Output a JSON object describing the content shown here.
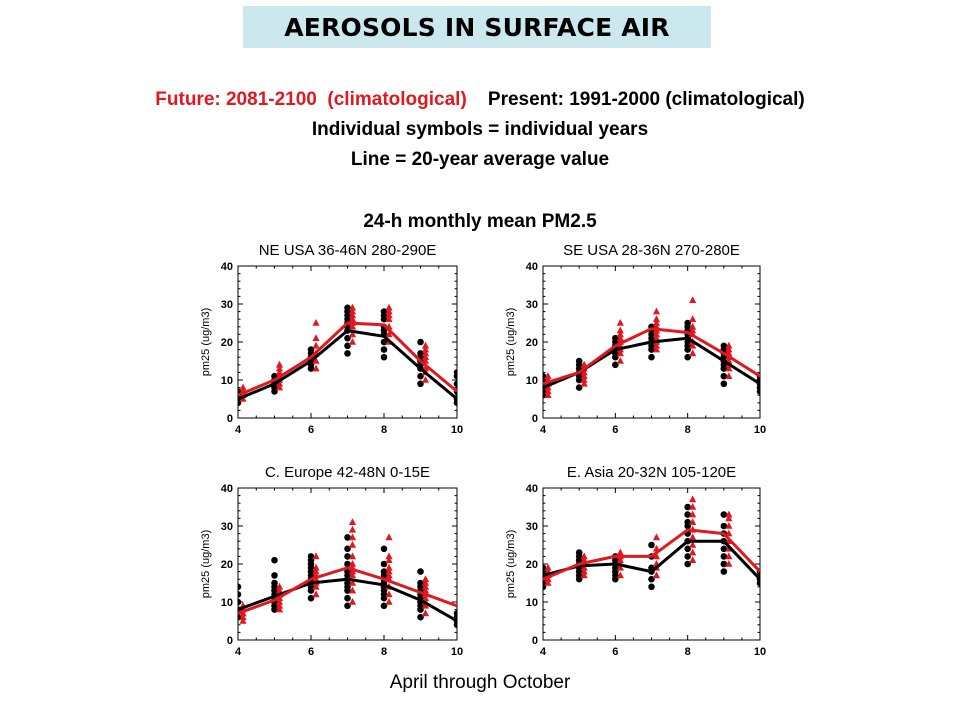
{
  "header": {
    "title": "AEROSOLS IN SURFACE AIR",
    "future_label": "Future: 2081-2100  (climatological)",
    "present_label": "Present: 1991-2000 (climatological)",
    "line2": "Individual symbols = individual years",
    "line3": "Line = 20-year average value",
    "subtitle": "24-h monthly mean PM2.5"
  },
  "footer": {
    "text": "April through October"
  },
  "colors": {
    "future": "#e0181f",
    "present": "#000000",
    "title_bg": "#cbe8ef"
  },
  "chart_data": [
    {
      "type": "scatter",
      "title": "NE USA 36-46N 280-290E",
      "ylabel": "pm25 (ug/m3)",
      "xlabel": "",
      "xlim": [
        4,
        10
      ],
      "ylim": [
        0,
        40
      ],
      "xticks": [
        "4",
        "6",
        "8",
        "10"
      ],
      "yticks": [
        "0",
        "10",
        "20",
        "30",
        "40"
      ],
      "series": [
        {
          "name": "Present: 1991-2000 (climatological)",
          "color": "#000000",
          "marker": "circle",
          "line": {
            "x": [
              4,
              5,
              6,
              7,
              8,
              9,
              10
            ],
            "y": [
              5,
              9,
              15,
              23,
              21.5,
              13,
              5
            ]
          },
          "points": [
            {
              "x": 4,
              "y": [
                4,
                5,
                6,
                7
              ]
            },
            {
              "x": 5,
              "y": [
                7,
                8,
                9,
                10,
                11
              ]
            },
            {
              "x": 6,
              "y": [
                13,
                14,
                15,
                16,
                17,
                18
              ]
            },
            {
              "x": 7,
              "y": [
                17,
                19,
                21,
                23,
                24,
                25,
                26,
                27,
                28,
                29
              ]
            },
            {
              "x": 8,
              "y": [
                16,
                18,
                20,
                22,
                23,
                24,
                26,
                27,
                28
              ]
            },
            {
              "x": 9,
              "y": [
                9,
                11,
                13,
                14,
                15,
                16,
                17,
                20
              ]
            },
            {
              "x": 10,
              "y": [
                4,
                5,
                7,
                9,
                11,
                12
              ]
            }
          ]
        },
        {
          "name": "Future: 2081-2100  (climatological)",
          "color": "#e0181f",
          "marker": "triangle",
          "line": {
            "x": [
              4,
              5,
              6,
              7,
              8,
              9,
              10
            ],
            "y": [
              6,
              10,
              16,
              25,
              24.5,
              15,
              7
            ]
          },
          "points": [
            {
              "x": 4,
              "y": [
                5,
                6,
                7,
                8
              ]
            },
            {
              "x": 5,
              "y": [
                8,
                9,
                10,
                11,
                12,
                13,
                14
              ]
            },
            {
              "x": 6,
              "y": [
                13,
                15,
                17,
                19,
                21,
                25
              ]
            },
            {
              "x": 7,
              "y": [
                20,
                22,
                24,
                25,
                26,
                27,
                28,
                29
              ]
            },
            {
              "x": 8,
              "y": [
                20,
                22,
                24,
                26,
                27,
                28,
                29
              ]
            },
            {
              "x": 9,
              "y": [
                10,
                12,
                13,
                15,
                16,
                17,
                18,
                19
              ]
            }
          ]
        }
      ]
    },
    {
      "type": "scatter",
      "title": "SE USA 28-36N 270-280E",
      "ylabel": "pm25 (ug/m3)",
      "xlabel": "",
      "xlim": [
        4,
        10
      ],
      "ylim": [
        0,
        40
      ],
      "xticks": [
        "4",
        "6",
        "8",
        "10"
      ],
      "yticks": [
        "0",
        "10",
        "20",
        "30",
        "40"
      ],
      "series": [
        {
          "name": "Present: 1991-2000 (climatological)",
          "color": "#000000",
          "marker": "circle",
          "line": {
            "x": [
              4,
              5,
              6,
              7,
              8,
              9,
              10
            ],
            "y": [
              8,
              12,
              18,
              20,
              21,
              15,
              9
            ]
          },
          "points": [
            {
              "x": 4,
              "y": [
                6,
                7,
                8,
                9,
                10,
                11
              ]
            },
            {
              "x": 5,
              "y": [
                8,
                10,
                11,
                12,
                13,
                14,
                15
              ]
            },
            {
              "x": 6,
              "y": [
                14,
                16,
                17,
                18,
                19,
                20,
                21
              ]
            },
            {
              "x": 7,
              "y": [
                16,
                18,
                19,
                20,
                21,
                22,
                23,
                24
              ]
            },
            {
              "x": 8,
              "y": [
                16,
                18,
                19,
                20,
                21,
                22,
                23,
                24,
                25
              ]
            },
            {
              "x": 9,
              "y": [
                9,
                11,
                13,
                14,
                15,
                16,
                17,
                18,
                19
              ]
            },
            {
              "x": 10,
              "y": [
                7,
                8,
                9,
                10,
                11
              ]
            }
          ]
        },
        {
          "name": "Future: 2081-2100  (climatological)",
          "color": "#e0181f",
          "marker": "triangle",
          "line": {
            "x": [
              4,
              5,
              6,
              7,
              8,
              9,
              10
            ],
            "y": [
              9,
              12,
              19,
              23.5,
              22.5,
              17,
              11
            ]
          },
          "points": [
            {
              "x": 4,
              "y": [
                6,
                7,
                8,
                9,
                10,
                11
              ]
            },
            {
              "x": 5,
              "y": [
                9,
                10,
                11,
                12,
                13,
                14
              ]
            },
            {
              "x": 6,
              "y": [
                15,
                17,
                18,
                19,
                20,
                21,
                22,
                23,
                25
              ]
            },
            {
              "x": 7,
              "y": [
                18,
                19,
                20,
                21,
                22,
                23,
                24,
                25,
                26,
                28
              ]
            },
            {
              "x": 8,
              "y": [
                17,
                19,
                20,
                22,
                23,
                24,
                26,
                31
              ]
            },
            {
              "x": 9,
              "y": [
                11,
                13,
                14,
                15,
                16,
                17,
                18,
                19
              ]
            }
          ]
        }
      ]
    },
    {
      "type": "scatter",
      "title": "C. Europe 42-48N 0-15E",
      "ylabel": "pm25 (ug/m3)",
      "xlabel": "",
      "xlim": [
        4,
        10
      ],
      "ylim": [
        0,
        40
      ],
      "xticks": [
        "4",
        "6",
        "8",
        "10"
      ],
      "yticks": [
        "0",
        "10",
        "20",
        "30",
        "40"
      ],
      "series": [
        {
          "name": "Present: 1991-2000 (climatological)",
          "color": "#000000",
          "marker": "circle",
          "line": {
            "x": [
              4,
              5,
              6,
              7,
              8,
              9,
              10
            ],
            "y": [
              8,
              11.5,
              15,
              16,
              14.5,
              10.5,
              5
            ]
          },
          "points": [
            {
              "x": 4,
              "y": [
                6,
                8,
                10,
                12,
                14
              ]
            },
            {
              "x": 5,
              "y": [
                8,
                9,
                10,
                11,
                12,
                13,
                14,
                15,
                17,
                21
              ]
            },
            {
              "x": 6,
              "y": [
                11,
                13,
                14,
                15,
                16,
                17,
                18,
                19,
                20,
                21,
                22
              ]
            },
            {
              "x": 7,
              "y": [
                9,
                11,
                13,
                14,
                15,
                16,
                17,
                18,
                20,
                22,
                24,
                27
              ]
            },
            {
              "x": 8,
              "y": [
                9,
                11,
                12,
                13,
                14,
                15,
                16,
                17,
                18,
                20,
                24
              ]
            },
            {
              "x": 9,
              "y": [
                6,
                8,
                9,
                10,
                11,
                12,
                13,
                14,
                15,
                18
              ]
            },
            {
              "x": 10,
              "y": [
                4,
                5,
                6,
                7
              ]
            }
          ]
        },
        {
          "name": "Future: 2081-2100  (climatological)",
          "color": "#e0181f",
          "marker": "triangle",
          "line": {
            "x": [
              4,
              5,
              6,
              7,
              8,
              9,
              10
            ],
            "y": [
              7,
              10.5,
              16,
              19,
              16,
              12.5,
              9
            ]
          },
          "points": [
            {
              "x": 4,
              "y": [
                5,
                6,
                7,
                8,
                9
              ]
            },
            {
              "x": 5,
              "y": [
                8,
                9,
                10,
                11,
                12,
                13,
                14
              ]
            },
            {
              "x": 6,
              "y": [
                12,
                14,
                15,
                16,
                17,
                18,
                19,
                22
              ]
            },
            {
              "x": 7,
              "y": [
                10,
                13,
                15,
                17,
                18,
                19,
                20,
                22,
                25,
                27,
                29,
                31
              ]
            },
            {
              "x": 8,
              "y": [
                10,
                12,
                14,
                16,
                17,
                18,
                19,
                21,
                22,
                27
              ]
            },
            {
              "x": 9,
              "y": [
                7,
                9,
                10,
                11,
                12,
                13,
                14,
                15,
                16
              ]
            }
          ]
        }
      ]
    },
    {
      "type": "scatter",
      "title": "E. Asia 20-32N 105-120E",
      "ylabel": "pm25 (ug/m3)",
      "xlabel": "",
      "xlim": [
        4,
        10
      ],
      "ylim": [
        0,
        40
      ],
      "xticks": [
        "4",
        "6",
        "8",
        "10"
      ],
      "yticks": [
        "0",
        "10",
        "20",
        "30",
        "40"
      ],
      "series": [
        {
          "name": "Present: 1991-2000 (climatological)",
          "color": "#000000",
          "marker": "circle",
          "line": {
            "x": [
              4,
              5,
              6,
              7,
              8,
              9,
              10
            ],
            "y": [
              17,
              19.5,
              20,
              18,
              26,
              26,
              16
            ]
          },
          "points": [
            {
              "x": 4,
              "y": [
                14,
                15,
                16,
                17,
                18,
                19
              ]
            },
            {
              "x": 5,
              "y": [
                16,
                17,
                18,
                19,
                20,
                21,
                22,
                23
              ]
            },
            {
              "x": 6,
              "y": [
                16,
                17,
                18,
                19,
                20,
                21,
                22
              ]
            },
            {
              "x": 7,
              "y": [
                14,
                16,
                18,
                19,
                22,
                25
              ]
            },
            {
              "x": 8,
              "y": [
                20,
                22,
                24,
                26,
                28,
                30,
                31,
                33,
                35
              ]
            },
            {
              "x": 9,
              "y": [
                18,
                20,
                22,
                24,
                26,
                28,
                30,
                33
              ]
            },
            {
              "x": 10,
              "y": [
                15,
                16,
                17,
                18
              ]
            }
          ]
        },
        {
          "name": "Future: 2081-2100  (climatological)",
          "color": "#e0181f",
          "marker": "triangle",
          "line": {
            "x": [
              4,
              5,
              6,
              7,
              8,
              9,
              10
            ],
            "y": [
              16,
              20,
              22,
              22,
              29,
              28,
              18
            ]
          },
          "points": [
            {
              "x": 4,
              "y": [
                15,
                16,
                17,
                18,
                19
              ]
            },
            {
              "x": 5,
              "y": [
                17,
                18,
                19,
                20,
                21,
                22
              ]
            },
            {
              "x": 6,
              "y": [
                17,
                19,
                20,
                21,
                22,
                23
              ]
            },
            {
              "x": 7,
              "y": [
                17,
                19,
                20,
                22,
                24,
                27
              ]
            },
            {
              "x": 8,
              "y": [
                21,
                23,
                25,
                27,
                29,
                31,
                33,
                35,
                37
              ]
            },
            {
              "x": 9,
              "y": [
                20,
                22,
                24,
                26,
                28,
                30,
                32,
                33
              ]
            }
          ]
        }
      ]
    }
  ]
}
